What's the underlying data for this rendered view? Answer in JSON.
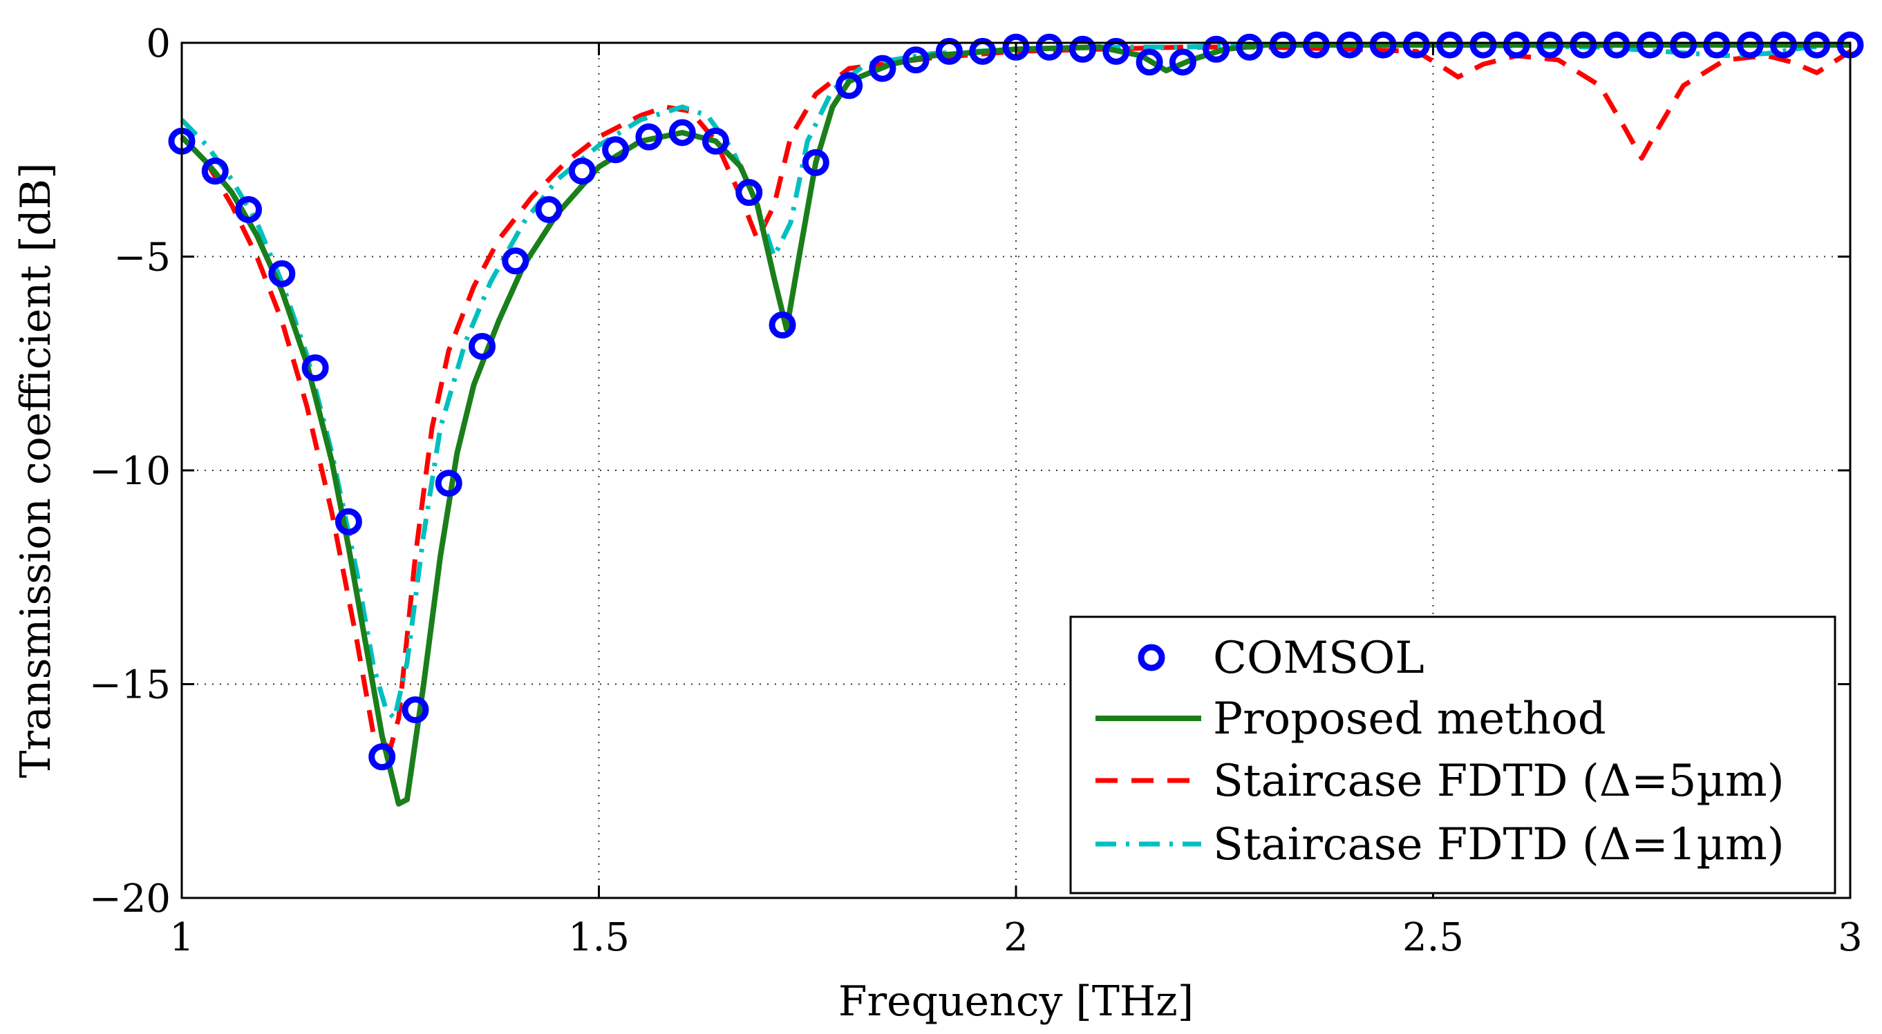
{
  "chart_data": {
    "type": "line",
    "title": "",
    "xlabel": "Frequency [THz]",
    "ylabel": "Transmission coefficient [dB]",
    "xlim": [
      1,
      3
    ],
    "ylim": [
      -20,
      0
    ],
    "xticks": [
      1,
      1.5,
      2,
      2.5,
      3
    ],
    "xtick_labels": [
      "1",
      "1.5",
      "2",
      "2.5",
      "3"
    ],
    "yticks": [
      0,
      -5,
      -10,
      -15,
      -20
    ],
    "ytick_labels": [
      "0",
      "−5",
      "−10",
      "−15",
      "−20"
    ],
    "grid": true,
    "legend_position": "bottom-right",
    "series": [
      {
        "name": "COMSOL",
        "style": "markers",
        "color": "#0000ff",
        "x": [
          1.0,
          1.04,
          1.08,
          1.12,
          1.16,
          1.2,
          1.24,
          1.28,
          1.32,
          1.36,
          1.4,
          1.44,
          1.48,
          1.52,
          1.56,
          1.6,
          1.64,
          1.68,
          1.72,
          1.76,
          1.8,
          1.84,
          1.88,
          1.92,
          1.96,
          2.0,
          2.04,
          2.08,
          2.12,
          2.16,
          2.2,
          2.24,
          2.28,
          2.32,
          2.36,
          2.4,
          2.44,
          2.48,
          2.52,
          2.56,
          2.6,
          2.64,
          2.68,
          2.72,
          2.76,
          2.8,
          2.84,
          2.88,
          2.92,
          2.96,
          3.0
        ],
        "y": [
          -2.3,
          -3.0,
          -3.9,
          -5.4,
          -7.6,
          -11.2,
          -16.7,
          -15.6,
          -10.3,
          -7.1,
          -5.1,
          -3.9,
          -3.0,
          -2.5,
          -2.2,
          -2.1,
          -2.3,
          -3.5,
          -6.6,
          -2.8,
          -1.0,
          -0.6,
          -0.4,
          -0.2,
          -0.2,
          -0.1,
          -0.1,
          -0.15,
          -0.2,
          -0.45,
          -0.45,
          -0.15,
          -0.1,
          -0.05,
          -0.05,
          -0.05,
          -0.05,
          -0.05,
          -0.05,
          -0.05,
          -0.05,
          -0.05,
          -0.05,
          -0.05,
          -0.05,
          -0.05,
          -0.05,
          -0.05,
          -0.05,
          -0.05,
          -0.05
        ]
      },
      {
        "name": "Proposed method",
        "style": "solid",
        "color": "#1a7f1a",
        "x": [
          1.0,
          1.03,
          1.06,
          1.09,
          1.12,
          1.15,
          1.18,
          1.2,
          1.22,
          1.24,
          1.26,
          1.27,
          1.29,
          1.31,
          1.33,
          1.35,
          1.38,
          1.41,
          1.45,
          1.5,
          1.55,
          1.6,
          1.64,
          1.67,
          1.69,
          1.71,
          1.725,
          1.74,
          1.76,
          1.78,
          1.8,
          1.85,
          1.9,
          2.0,
          2.1,
          2.15,
          2.18,
          2.21,
          2.25,
          2.3,
          2.5,
          2.7,
          3.0
        ],
        "y": [
          -2.2,
          -2.8,
          -3.5,
          -4.5,
          -5.8,
          -7.5,
          -9.8,
          -11.8,
          -14.0,
          -16.2,
          -17.8,
          -17.7,
          -15.0,
          -12.0,
          -9.6,
          -8.0,
          -6.5,
          -5.2,
          -4.0,
          -2.9,
          -2.3,
          -2.1,
          -2.3,
          -2.9,
          -3.8,
          -5.5,
          -6.7,
          -5.0,
          -2.8,
          -1.5,
          -0.9,
          -0.5,
          -0.3,
          -0.15,
          -0.1,
          -0.3,
          -0.65,
          -0.4,
          -0.15,
          -0.05,
          -0.05,
          -0.05,
          -0.05
        ]
      },
      {
        "name": "Staircase FDTD (Δ=5µm)",
        "style": "dashed",
        "color": "#ff0000",
        "x": [
          1.0,
          1.03,
          1.06,
          1.09,
          1.12,
          1.15,
          1.18,
          1.21,
          1.23,
          1.25,
          1.26,
          1.28,
          1.3,
          1.32,
          1.35,
          1.38,
          1.42,
          1.46,
          1.5,
          1.55,
          1.58,
          1.61,
          1.64,
          1.67,
          1.69,
          1.71,
          1.73,
          1.76,
          1.8,
          1.9,
          2.0,
          2.1,
          2.2,
          2.3,
          2.4,
          2.48,
          2.51,
          2.53,
          2.56,
          2.6,
          2.65,
          2.7,
          2.73,
          2.75,
          2.77,
          2.8,
          2.85,
          2.9,
          2.93,
          2.96,
          3.0
        ],
        "y": [
          -2.2,
          -2.8,
          -3.8,
          -5.0,
          -6.5,
          -8.5,
          -11.0,
          -14.0,
          -16.2,
          -16.5,
          -15.8,
          -12.0,
          -9.0,
          -7.2,
          -5.7,
          -4.6,
          -3.6,
          -2.8,
          -2.2,
          -1.7,
          -1.5,
          -1.6,
          -2.3,
          -3.6,
          -4.6,
          -3.8,
          -2.2,
          -1.2,
          -0.6,
          -0.35,
          -0.2,
          -0.15,
          -0.1,
          -0.1,
          -0.15,
          -0.2,
          -0.55,
          -0.8,
          -0.5,
          -0.3,
          -0.4,
          -1.0,
          -2.0,
          -2.7,
          -2.0,
          -1.0,
          -0.4,
          -0.3,
          -0.45,
          -0.7,
          -0.2
        ]
      },
      {
        "name": "Staircase FDTD (Δ=1µm)",
        "style": "dashdot",
        "color": "#00bfbf",
        "x": [
          1.0,
          1.03,
          1.06,
          1.09,
          1.12,
          1.15,
          1.18,
          1.21,
          1.23,
          1.245,
          1.255,
          1.27,
          1.29,
          1.31,
          1.34,
          1.37,
          1.41,
          1.45,
          1.5,
          1.55,
          1.6,
          1.63,
          1.66,
          1.69,
          1.71,
          1.73,
          1.75,
          1.78,
          1.82,
          1.9,
          2.0,
          2.1,
          2.2,
          2.3,
          2.5,
          2.7,
          2.85,
          2.9,
          2.95,
          3.0
        ],
        "y": [
          -1.8,
          -2.4,
          -3.2,
          -4.2,
          -5.6,
          -7.3,
          -9.6,
          -12.4,
          -14.6,
          -15.6,
          -15.8,
          -14.5,
          -11.5,
          -9.0,
          -7.0,
          -5.6,
          -4.2,
          -3.2,
          -2.4,
          -1.8,
          -1.5,
          -1.7,
          -2.5,
          -3.8,
          -5.0,
          -4.2,
          -2.3,
          -1.1,
          -0.5,
          -0.25,
          -0.15,
          -0.1,
          -0.1,
          -0.05,
          -0.05,
          -0.1,
          -0.3,
          -0.25,
          -0.1,
          -0.05
        ]
      }
    ]
  }
}
